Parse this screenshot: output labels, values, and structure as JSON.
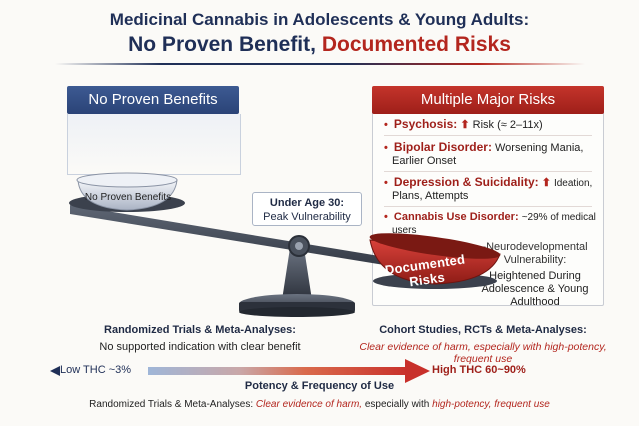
{
  "title": {
    "line1": "Medicinal Cannabis in Adolescents & Young Adults:",
    "line2_part1": "No Proven Benefit,",
    "line2_part2": "Documented Risks"
  },
  "benefit": {
    "header": "No Proven Benefits",
    "pan_label": "No Proven Benefits"
  },
  "risks": {
    "header": "Multiple Major Risks",
    "items": [
      {
        "head": "Psychosis:",
        "arrow": "⬆",
        "text": "Risk (≈ 2–11x)"
      },
      {
        "head": "Bipolar Disorder:",
        "text": "Worsening Mania,",
        "text2": "Earlier Onset"
      },
      {
        "head": "Depression & Suicidality:",
        "arrow": "⬆",
        "text": "Ideation,",
        "text2": "Plans, Attempts"
      },
      {
        "head": "Cannabis Use Disorder:",
        "text": "~29% of medical",
        "text2": "users"
      }
    ],
    "neuro": {
      "head1": "-Neurodevelopmental",
      "head2": "Vulnerability:",
      "line1": "Heightened During",
      "line2": "Adolescence & Young",
      "line3": "Adulthood"
    },
    "pan_label": "Documented Risks"
  },
  "callout": {
    "head": "Under Age 30:",
    "text": "Peak Vulnerability"
  },
  "captions": {
    "left_head": "Randomized Trials & Meta-Analyses:",
    "left_sub": "No supported indication with clear benefit",
    "right_head": "Cohort Studies, RCTs & Meta-Analyses:",
    "right_sub": "Clear evidence of harm, especially with high-potency, frequent use"
  },
  "axis": {
    "low": "Low THC ~3%",
    "high": "High THC 60~90%",
    "label": "Potency & Frequency of Use"
  },
  "footer": {
    "part1": "Randomized Trials & Meta-Analyses:",
    "part2": "Clear evidence of harm,",
    "part3": "especially with",
    "part4": "high-potency, frequent use"
  },
  "colors": {
    "navy": "#1f2f57",
    "red": "#b3261e",
    "blue_panel": "#2a4377"
  }
}
